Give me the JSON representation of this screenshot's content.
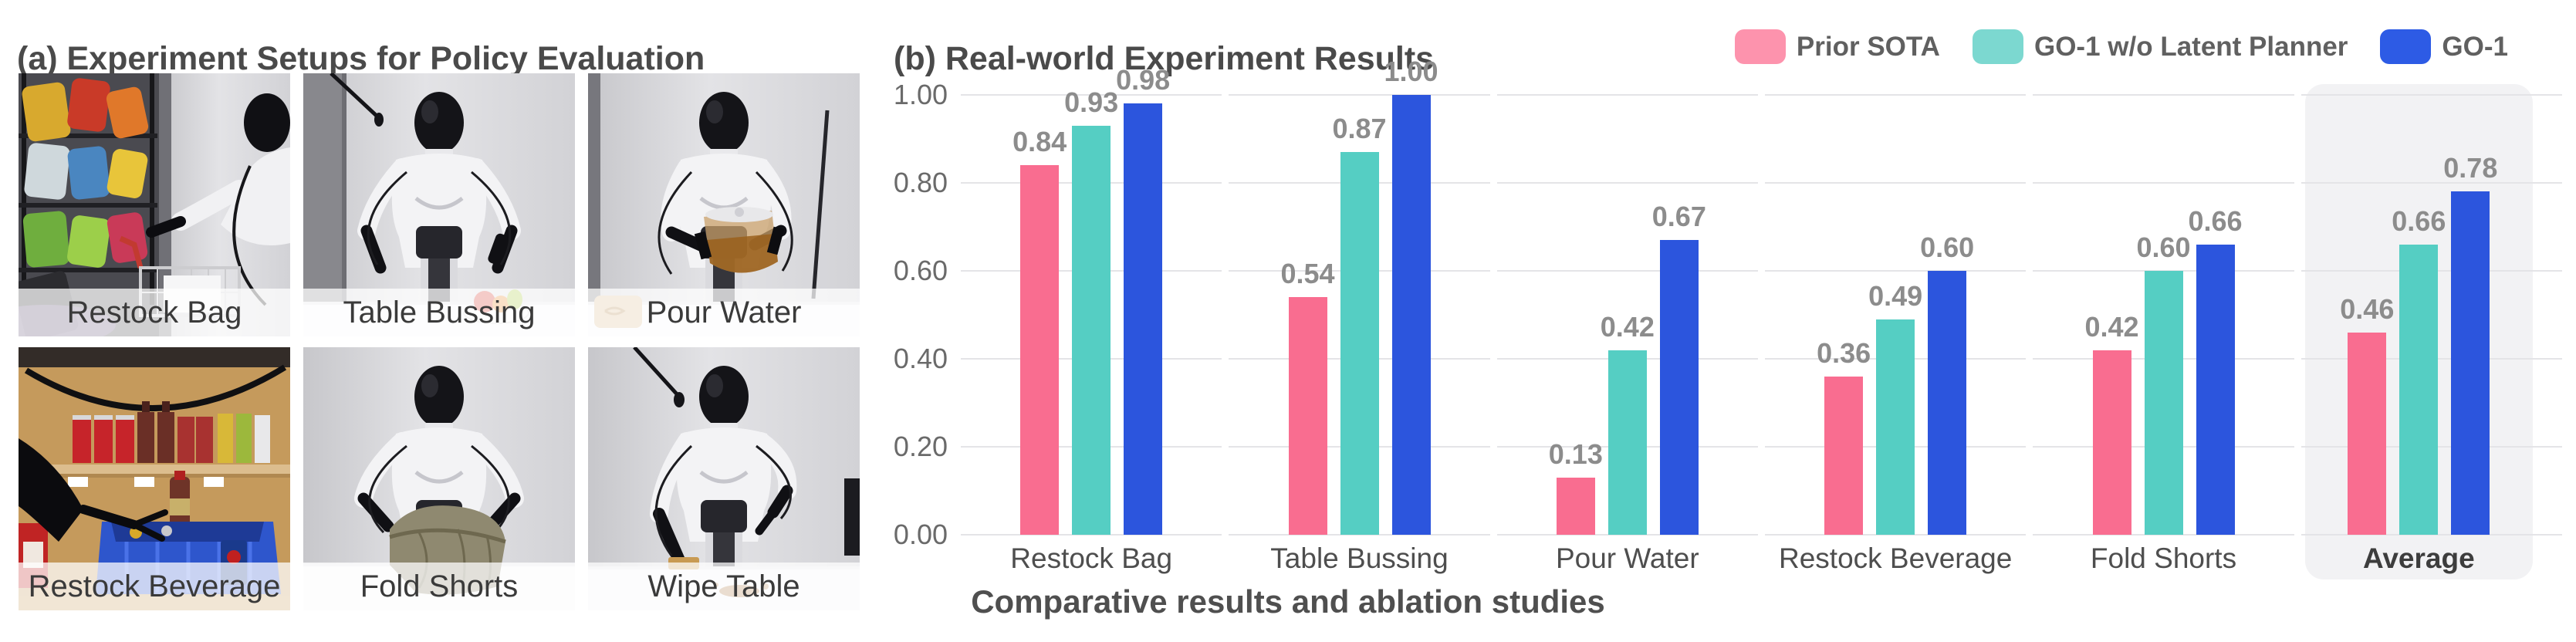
{
  "panel_a": {
    "title": "(a) Experiment Setups for Policy Evaluation",
    "photos": [
      {
        "label": "Restock Bag"
      },
      {
        "label": "Table Bussing"
      },
      {
        "label": "Pour Water"
      },
      {
        "label": "Restock Beverage"
      },
      {
        "label": "Fold Shorts"
      },
      {
        "label": "Wipe Table"
      }
    ]
  },
  "panel_b": {
    "title": "(b) Real-world Experiment Results",
    "caption": "Comparative results and ablation studies",
    "legend": [
      {
        "label": "Prior SOTA",
        "color": "#FD93AD"
      },
      {
        "label": "GO-1 w/o Latent Planner",
        "color": "#7CD8D0"
      },
      {
        "label": "GO-1",
        "color": "#2D5BE5"
      }
    ]
  },
  "chart_data": {
    "type": "bar",
    "title": "(b) Real-world Experiment Results",
    "categories": [
      "Restock Bag",
      "Table Bussing",
      "Pour Water",
      "Restock Beverage",
      "Fold Shorts",
      "Average"
    ],
    "series": [
      {
        "name": "Prior SOTA",
        "color": "#F96D90",
        "values": [
          0.84,
          0.54,
          0.13,
          0.36,
          0.42,
          0.46
        ]
      },
      {
        "name": "GO-1 w/o Latent Planner",
        "color": "#55CEC3",
        "values": [
          0.93,
          0.87,
          0.42,
          0.49,
          0.6,
          0.66
        ]
      },
      {
        "name": "GO-1",
        "color": "#2C55DD",
        "values": [
          0.98,
          1.0,
          0.67,
          0.6,
          0.66,
          0.78
        ]
      }
    ],
    "value_label_format": "0.00",
    "ylim": [
      0,
      1.0
    ],
    "yticks": [
      "0.00",
      "0.20",
      "0.40",
      "0.60",
      "0.80",
      "1.00"
    ],
    "grid": true,
    "highlight_category": "Average",
    "legend_position": "top-right",
    "xlabel": "",
    "ylabel": ""
  }
}
